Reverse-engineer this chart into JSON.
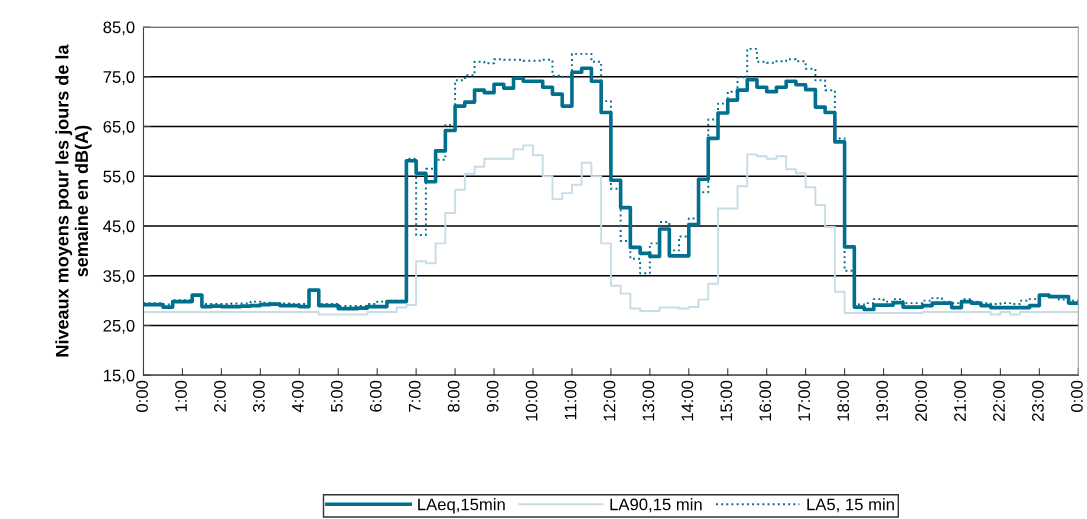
{
  "chart_data": {
    "type": "step",
    "ylabel": "Niveaux moyens pour les jours de la\nsemaine en dB(A)",
    "x": [
      0,
      0.25,
      0.5,
      0.75,
      1,
      1.25,
      1.5,
      1.75,
      2,
      2.25,
      2.5,
      2.75,
      3,
      3.25,
      3.5,
      3.75,
      4,
      4.25,
      4.5,
      4.75,
      5,
      5.25,
      5.5,
      5.75,
      6,
      6.25,
      6.5,
      6.75,
      7,
      7.25,
      7.5,
      7.75,
      8,
      8.25,
      8.5,
      8.75,
      9,
      9.25,
      9.5,
      9.75,
      10,
      10.25,
      10.5,
      10.75,
      11,
      11.25,
      11.5,
      11.75,
      12,
      12.25,
      12.5,
      12.75,
      13,
      13.25,
      13.5,
      13.75,
      14,
      14.25,
      14.5,
      14.75,
      15,
      15.25,
      15.5,
      15.75,
      16,
      16.25,
      16.5,
      16.75,
      17,
      17.25,
      17.5,
      17.75,
      18,
      18.25,
      18.5,
      18.75,
      19,
      19.25,
      19.5,
      19.75,
      20,
      20.25,
      20.5,
      20.75,
      21,
      21.25,
      21.5,
      21.75,
      22,
      22.25,
      22.5,
      22.75,
      23,
      23.25,
      23.5,
      23.75,
      24
    ],
    "series": [
      {
        "name": "LAeq,15min",
        "color": "#00708e",
        "line_style": "solid",
        "values": [
          29.2,
          29.2,
          28.7,
          29.8,
          29.8,
          31.1,
          28.8,
          28.9,
          28.8,
          28.8,
          28.9,
          29.0,
          29.2,
          29.3,
          29.0,
          29.0,
          28.8,
          32.1,
          29.0,
          29.0,
          28.4,
          28.4,
          28.5,
          28.8,
          28.8,
          29.8,
          29.8,
          58.1,
          55.6,
          53.9,
          60.1,
          64.2,
          69.1,
          69.9,
          72.3,
          71.8,
          73.5,
          72.7,
          74.7,
          74.1,
          74.1,
          72.9,
          71.5,
          69.1,
          75.9,
          76.7,
          74.1,
          67.8,
          54.2,
          48.7,
          40.7,
          39.5,
          38.9,
          44.4,
          39.0,
          39.0,
          45.3,
          54.4,
          62.6,
          67.7,
          70.3,
          72.3,
          74.4,
          72.9,
          72.0,
          72.9,
          74.1,
          73.4,
          72.4,
          68.9,
          67.8,
          61.9,
          40.8,
          28.7,
          28.2,
          29.1,
          29.1,
          29.6,
          28.7,
          28.7,
          29.0,
          29.5,
          29.5,
          28.6,
          29.8,
          29.5,
          29.0,
          28.6,
          28.6,
          28.6,
          28.6,
          29.0,
          31.1,
          30.8,
          30.8,
          29.5,
          29.5
        ]
      },
      {
        "name": "LA90,15 min",
        "color": "#c8dce6",
        "line_style": "solid",
        "values": [
          27.7,
          27.7,
          27.7,
          27.7,
          27.7,
          27.7,
          27.7,
          27.7,
          27.7,
          27.7,
          27.7,
          27.7,
          27.7,
          27.7,
          27.7,
          27.7,
          27.7,
          27.7,
          27.2,
          27.2,
          27.2,
          27.2,
          27.2,
          27.7,
          27.7,
          27.7,
          28.6,
          29.1,
          37.9,
          37.5,
          41.5,
          47.6,
          52.3,
          55.5,
          56.9,
          58.5,
          58.5,
          58.5,
          60.4,
          61.2,
          59.2,
          55.0,
          50.4,
          51.6,
          53.3,
          57.7,
          55.0,
          41.5,
          33.0,
          31.4,
          28.4,
          27.9,
          27.9,
          28.6,
          28.6,
          28.4,
          28.7,
          30.2,
          33.4,
          48.5,
          48.5,
          53.0,
          59.4,
          59.0,
          58.5,
          59.0,
          56.4,
          55.6,
          52.8,
          49.2,
          44.8,
          31.8,
          27.5,
          27.5,
          27.5,
          27.5,
          27.5,
          27.5,
          27.5,
          27.5,
          27.7,
          27.7,
          27.7,
          27.7,
          27.7,
          27.7,
          27.7,
          27.2,
          27.7,
          27.2,
          27.7,
          27.7,
          27.7,
          27.7,
          27.7,
          27.7,
          27.7
        ]
      },
      {
        "name": "LA5, 15 min",
        "color": "#00708e",
        "line_style": "dotted",
        "values": [
          29.5,
          29.5,
          29.2,
          30.1,
          30.1,
          31.2,
          29.3,
          29.3,
          29.3,
          29.4,
          29.4,
          29.8,
          29.6,
          29.5,
          29.4,
          29.3,
          29.3,
          32.2,
          29.3,
          29.3,
          28.9,
          28.9,
          28.9,
          29.3,
          29.8,
          30.0,
          30.0,
          58.5,
          43.2,
          56.5,
          58.3,
          65.3,
          74.3,
          75.3,
          78.0,
          77.7,
          78.5,
          78.4,
          78.4,
          78.2,
          78.2,
          78.4,
          75.2,
          75.0,
          79.6,
          79.6,
          78.0,
          70.1,
          52.5,
          42.0,
          38.4,
          35.5,
          41.5,
          45.8,
          40.1,
          42.9,
          46.5,
          51.8,
          66.4,
          69.6,
          72.0,
          74.9,
          80.6,
          78.0,
          77.8,
          78.1,
          78.5,
          78.1,
          76.6,
          74.3,
          72.3,
          62.6,
          36.0,
          29.2,
          29.5,
          30.3,
          29.8,
          30.3,
          29.5,
          29.5,
          30.0,
          30.5,
          29.8,
          29.5,
          30.3,
          29.8,
          29.5,
          29.3,
          29.5,
          29.3,
          30.0,
          30.3,
          31.0,
          30.8,
          30.2,
          30.0,
          30.0
        ]
      }
    ],
    "xlim": [
      0,
      24
    ],
    "xticks": [
      {
        "value": 0,
        "label": "0:00"
      },
      {
        "value": 1,
        "label": "1:00"
      },
      {
        "value": 2,
        "label": "2:00"
      },
      {
        "value": 3,
        "label": "3:00"
      },
      {
        "value": 4,
        "label": "4:00"
      },
      {
        "value": 5,
        "label": "5:00"
      },
      {
        "value": 6,
        "label": "6:00"
      },
      {
        "value": 7,
        "label": "7:00"
      },
      {
        "value": 8,
        "label": "8:00"
      },
      {
        "value": 9,
        "label": "9:00"
      },
      {
        "value": 10,
        "label": "10:00"
      },
      {
        "value": 11,
        "label": "11:00"
      },
      {
        "value": 12,
        "label": "12:00"
      },
      {
        "value": 13,
        "label": "13:00"
      },
      {
        "value": 14,
        "label": "14:00"
      },
      {
        "value": 15,
        "label": "15:00"
      },
      {
        "value": 16,
        "label": "16:00"
      },
      {
        "value": 17,
        "label": "17:00"
      },
      {
        "value": 18,
        "label": "18:00"
      },
      {
        "value": 19,
        "label": "19:00"
      },
      {
        "value": 20,
        "label": "20:00"
      },
      {
        "value": 21,
        "label": "21:00"
      },
      {
        "value": 22,
        "label": "22:00"
      },
      {
        "value": 23,
        "label": "23:00"
      },
      {
        "value": 24,
        "label": "0:00"
      }
    ],
    "ylim": [
      15,
      85
    ],
    "yticks": [
      {
        "value": 15,
        "label": "15,0"
      },
      {
        "value": 25,
        "label": "25,0"
      },
      {
        "value": 35,
        "label": "35,0"
      },
      {
        "value": 45,
        "label": "45,0"
      },
      {
        "value": 55,
        "label": "55,0"
      },
      {
        "value": 65,
        "label": "65,0"
      },
      {
        "value": 75,
        "label": "75,0"
      },
      {
        "value": 85,
        "label": "85,0"
      }
    ],
    "grid": "y",
    "legend": "bottom"
  }
}
